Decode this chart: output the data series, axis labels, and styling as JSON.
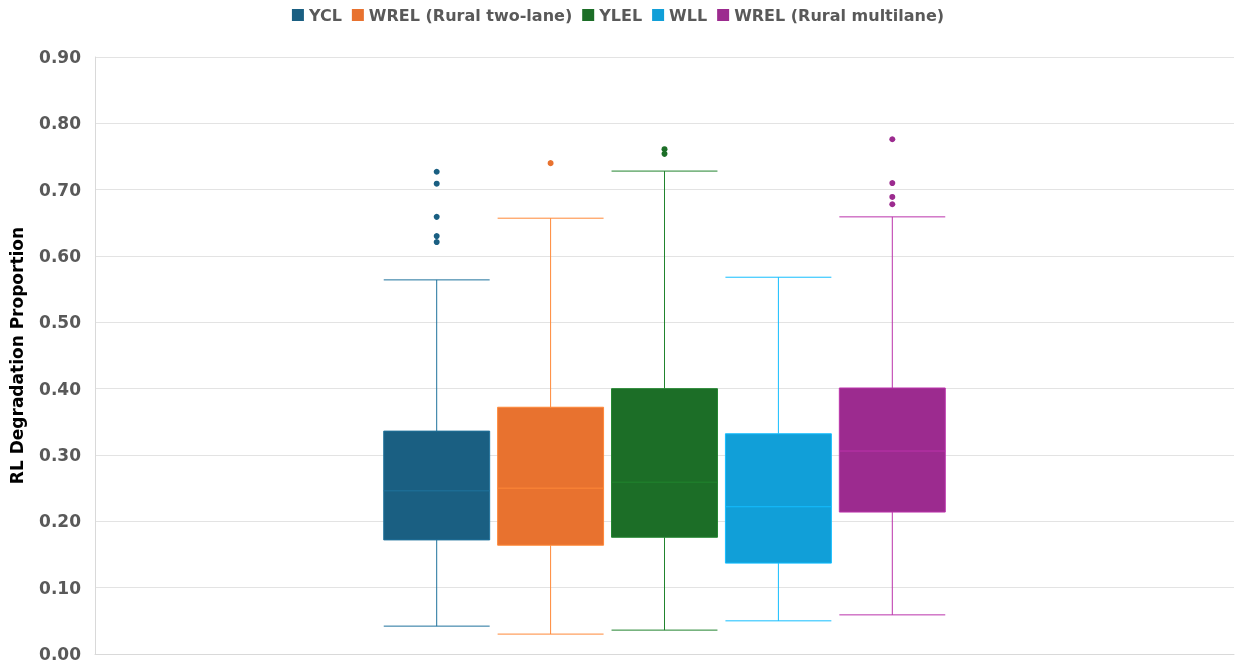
{
  "chart_data": {
    "type": "box",
    "ylabel": "RL Degradation Proportion",
    "categories": [
      null
    ],
    "ylim": [
      0,
      0.9
    ],
    "yticks": [
      {
        "value": 0,
        "label": "0.00"
      },
      {
        "value": 0.1,
        "label": "0.10"
      },
      {
        "value": 0.2,
        "label": "0.20"
      },
      {
        "value": 0.3,
        "label": "0.30"
      },
      {
        "value": 0.4,
        "label": "0.40"
      },
      {
        "value": 0.5,
        "label": "0.50"
      },
      {
        "value": 0.6,
        "label": "0.60"
      },
      {
        "value": 0.7,
        "label": "0.70"
      },
      {
        "value": 0.8,
        "label": "0.80"
      },
      {
        "value": 0.9,
        "label": "0.90"
      }
    ],
    "grid": "y",
    "legend": "top",
    "series": [
      {
        "name": "YCL",
        "color": "#1a5f82",
        "boxes": [
          {
            "low": 0.042,
            "q1": 0.172,
            "median": 0.246,
            "q3": 0.336,
            "high": 0.564,
            "outliers": [
              0.727,
              0.709,
              0.659,
              0.63,
              0.621
            ]
          }
        ]
      },
      {
        "name": "WREL (Rural two-lane)",
        "color": "#e8722f",
        "boxes": [
          {
            "low": 0.03,
            "q1": 0.164,
            "median": 0.25,
            "q3": 0.372,
            "high": 0.657,
            "outliers": [
              0.74
            ]
          }
        ]
      },
      {
        "name": "YLEL",
        "color": "#1c6e27",
        "boxes": [
          {
            "low": 0.036,
            "q1": 0.176,
            "median": 0.259,
            "q3": 0.4,
            "high": 0.728,
            "outliers": [
              0.761,
              0.754
            ]
          }
        ]
      },
      {
        "name": "WLL",
        "color": "#119fd8",
        "boxes": [
          {
            "low": 0.05,
            "q1": 0.137,
            "median": 0.222,
            "q3": 0.332,
            "high": 0.568
          }
        ]
      },
      {
        "name": "WREL (Rural multilane)",
        "color": "#9c2b8f",
        "boxes": [
          {
            "low": 0.059,
            "q1": 0.214,
            "median": 0.306,
            "q3": 0.401,
            "high": 0.659,
            "outliers": [
              0.776,
              0.71,
              0.689,
              0.678
            ]
          }
        ]
      }
    ]
  }
}
